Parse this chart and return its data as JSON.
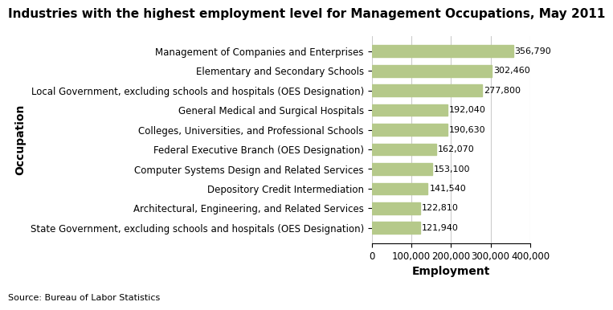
{
  "title": "Industries with the highest employment level for Management Occupations, May 2011",
  "xlabel": "Employment",
  "ylabel": "Occupation",
  "source": "Source: Bureau of Labor Statistics",
  "categories": [
    "State Government, excluding schools and hospitals (OES Designation)",
    "Architectural, Engineering, and Related Services",
    "Depository Credit Intermediation",
    "Computer Systems Design and Related Services",
    "Federal Executive Branch (OES Designation)",
    "Colleges, Universities, and Professional Schools",
    "General Medical and Surgical Hospitals",
    "Local Government, excluding schools and hospitals (OES Designation)",
    "Elementary and Secondary Schools",
    "Management of Companies and Enterprises"
  ],
  "values": [
    121940,
    122810,
    141540,
    153100,
    162070,
    190630,
    192040,
    277800,
    302460,
    356790
  ],
  "bar_color": "#b5c98a",
  "bar_edge_color": "#b5c98a",
  "value_labels": [
    "121,940",
    "122,810",
    "141,540",
    "153,100",
    "162,070",
    "190,630",
    "192,040",
    "277,800",
    "302,460",
    "356,790"
  ],
  "xlim": [
    0,
    400000
  ],
  "xticks": [
    0,
    100000,
    200000,
    300000,
    400000
  ],
  "xtick_labels": [
    "0",
    "100,000",
    "200,000",
    "300,000",
    "400,000"
  ],
  "background_color": "#ffffff",
  "grid_color": "#cccccc",
  "title_fontsize": 11,
  "axis_label_fontsize": 10,
  "tick_fontsize": 8.5,
  "value_fontsize": 8,
  "source_fontsize": 8
}
